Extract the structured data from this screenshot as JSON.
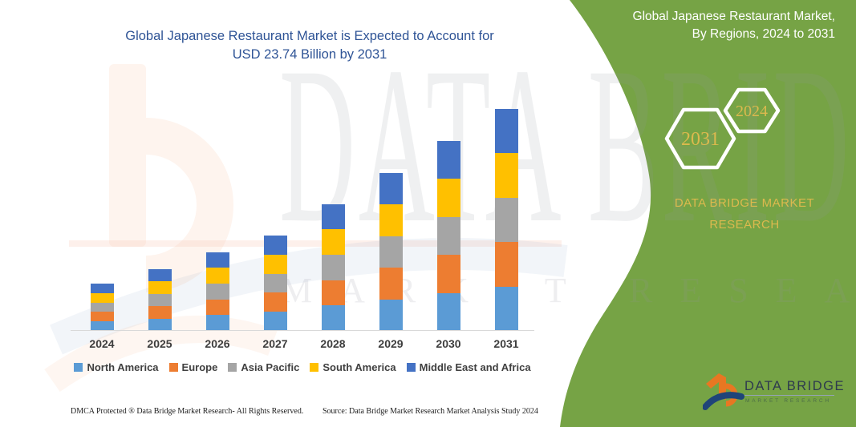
{
  "title": {
    "line1": "Global Japanese Restaurant Market is Expected to Account for",
    "line2": "USD 23.74 Billion by 2031"
  },
  "panel": {
    "header_line1": "Global Japanese Restaurant Market,",
    "header_line2": "By Regions, 2024 to 2031",
    "hex_large_label": "2031",
    "hex_small_label": "2024",
    "brand_text": "DATA BRIDGE MARKET RESEARCH",
    "background_color": "#76A345",
    "accent_gold": "#DCB94E"
  },
  "logo": {
    "wordmark": "DATA BRIDGE",
    "subtext": "MARKET RESEARCH",
    "mark_icon": "data-bridge-b-swoosh-logo",
    "orange": "#E87722",
    "navy": "#1F4479"
  },
  "watermark": {
    "line1": "DATA BRIDGE",
    "line2": "MARKET RESEARCH",
    "logo_icon": "data-bridge-b-logo-watermark"
  },
  "footer": {
    "left": "DMCA Protected ® Data Bridge Market Research-  All Rights Reserved.",
    "right": "Source: Data Bridge Market Research  Market Analysis Study 2024"
  },
  "chart_data": {
    "type": "bar",
    "stacked": true,
    "title": "Global Japanese Restaurant Market is Expected to Account for USD 23.74 Billion by 2031",
    "unit": "USD Billion",
    "categories": [
      "2024",
      "2025",
      "2026",
      "2027",
      "2028",
      "2029",
      "2030",
      "2031"
    ],
    "totals": [
      5.06,
      6.66,
      8.43,
      10.21,
      13.58,
      16.93,
      20.36,
      23.74
    ],
    "final_value_2031": 23.74,
    "series": [
      {
        "name": "North America",
        "color": "#5B9BD5",
        "values": [
          1.01,
          1.33,
          1.69,
          2.04,
          2.72,
          3.39,
          4.07,
          4.75
        ]
      },
      {
        "name": "Europe",
        "color": "#ED7D31",
        "values": [
          1.01,
          1.33,
          1.69,
          2.04,
          2.72,
          3.39,
          4.07,
          4.75
        ]
      },
      {
        "name": "Asia Pacific",
        "color": "#A5A5A5",
        "values": [
          1.01,
          1.33,
          1.69,
          2.04,
          2.72,
          3.39,
          4.07,
          4.75
        ]
      },
      {
        "name": "South America",
        "color": "#FFC000",
        "values": [
          1.01,
          1.33,
          1.69,
          2.04,
          2.72,
          3.39,
          4.07,
          4.75
        ]
      },
      {
        "name": "Middle East and Africa",
        "color": "#4472C4",
        "values": [
          1.01,
          1.33,
          1.69,
          2.04,
          2.72,
          3.39,
          4.07,
          4.75
        ]
      }
    ],
    "xlabel": "",
    "ylabel": "",
    "ylim": [
      0,
      24
    ],
    "grid": false,
    "legend_position": "bottom"
  }
}
